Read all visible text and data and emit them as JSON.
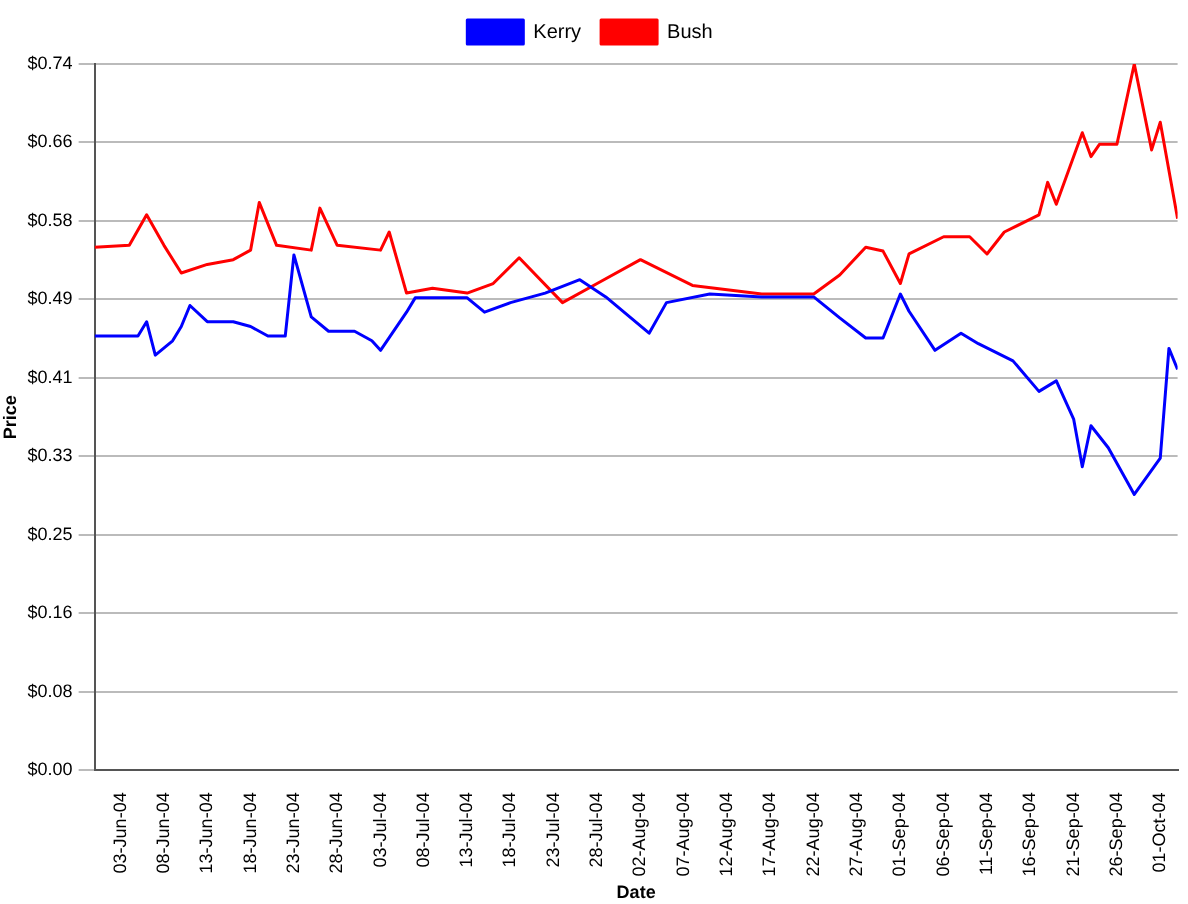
{
  "chart_data": {
    "type": "line",
    "xlabel": "Date",
    "ylabel": "Price",
    "legend": "top",
    "grid": "y",
    "marker": "none",
    "line_style": "solid",
    "xlim": [
      "--05-31",
      "--10-03"
    ],
    "xticks": [
      {
        "value": "--06-03",
        "label": "03-Jun-04"
      },
      {
        "value": "--06-08",
        "label": "08-Jun-04"
      },
      {
        "value": "--06-13",
        "label": "13-Jun-04"
      },
      {
        "value": "--06-18",
        "label": "18-Jun-04"
      },
      {
        "value": "--06-23",
        "label": "23-Jun-04"
      },
      {
        "value": "--06-28",
        "label": "28-Jun-04"
      },
      {
        "value": "--07-03",
        "label": "03-Jul-04"
      },
      {
        "value": "--07-08",
        "label": "08-Jul-04"
      },
      {
        "value": "--07-13",
        "label": "13-Jul-04"
      },
      {
        "value": "--07-18",
        "label": "18-Jul-04"
      },
      {
        "value": "--07-23",
        "label": "23-Jul-04"
      },
      {
        "value": "--07-28",
        "label": "28-Jul-04"
      },
      {
        "value": "--08-02",
        "label": "02-Aug-04"
      },
      {
        "value": "--08-07",
        "label": "07-Aug-04"
      },
      {
        "value": "--08-12",
        "label": "12-Aug-04"
      },
      {
        "value": "--08-17",
        "label": "17-Aug-04"
      },
      {
        "value": "--08-22",
        "label": "22-Aug-04"
      },
      {
        "value": "--08-27",
        "label": "27-Aug-04"
      },
      {
        "value": "--09-01",
        "label": "01-Sep-04"
      },
      {
        "value": "--09-06",
        "label": "06-Sep-04"
      },
      {
        "value": "--09-11",
        "label": "11-Sep-04"
      },
      {
        "value": "--09-16",
        "label": "16-Sep-04"
      },
      {
        "value": "--09-21",
        "label": "21-Sep-04"
      },
      {
        "value": "--09-26",
        "label": "26-Sep-04"
      },
      {
        "value": "--10-01",
        "label": "01-Oct-04"
      }
    ],
    "ylim": [
      0,
      0.74
    ],
    "yticks": [
      {
        "value": 0,
        "label": "$0.00"
      },
      {
        "value": 0.0822,
        "label": "$0.08"
      },
      {
        "value": 0.1644,
        "label": "$0.16"
      },
      {
        "value": 0.2467,
        "label": "$0.25"
      },
      {
        "value": 0.3289,
        "label": "$0.33"
      },
      {
        "value": 0.4111,
        "label": "$0.41"
      },
      {
        "value": 0.4933,
        "label": "$0.49"
      },
      {
        "value": 0.5756,
        "label": "$0.58"
      },
      {
        "value": 0.6578,
        "label": "$0.66"
      },
      {
        "value": 0.74,
        "label": "$0.74"
      }
    ],
    "series": [
      {
        "name": "Kerry",
        "color": "#0000ff",
        "x": [
          "--05-31",
          "--06-05",
          "--06-06",
          "--06-07",
          "--06-09",
          "--06-10",
          "--06-11",
          "--06-13",
          "--06-16",
          "--06-18",
          "--06-20",
          "--06-22",
          "--06-23",
          "--06-25",
          "--06-27",
          "--06-30",
          "--07-02",
          "--07-03",
          "--07-06",
          "--07-07",
          "--07-13",
          "--07-15",
          "--07-18",
          "--07-22",
          "--07-26",
          "--07-29",
          "--08-03",
          "--08-05",
          "--08-10",
          "--08-16",
          "--08-22",
          "--08-25",
          "--08-28",
          "--08-30",
          "--09-01",
          "--09-02",
          "--09-05",
          "--09-08",
          "--09-10",
          "--09-14",
          "--09-17",
          "--09-19",
          "--09-21",
          "--09-22",
          "--09-23",
          "--09-25",
          "--09-28",
          "--10-01",
          "--10-02",
          "--10-03"
        ],
        "values": [
          0.455,
          0.455,
          0.47,
          0.435,
          0.45,
          0.465,
          0.487,
          0.47,
          0.47,
          0.465,
          0.455,
          0.455,
          0.54,
          0.475,
          0.46,
          0.46,
          0.45,
          0.44,
          0.48,
          0.495,
          0.495,
          0.48,
          0.49,
          0.5,
          0.514,
          0.496,
          0.458,
          0.49,
          0.499,
          0.496,
          0.496,
          0.474,
          0.453,
          0.453,
          0.499,
          0.481,
          0.44,
          0.458,
          0.447,
          0.429,
          0.397,
          0.408,
          0.368,
          0.318,
          0.361,
          0.338,
          0.289,
          0.327,
          0.442,
          0.42
        ]
      },
      {
        "name": "Bush",
        "color": "#ff0000",
        "x": [
          "--05-31",
          "--06-04",
          "--06-06",
          "--06-08",
          "--06-10",
          "--06-13",
          "--06-16",
          "--06-18",
          "--06-19",
          "--06-21",
          "--06-25",
          "--06-26",
          "--06-28",
          "--07-03",
          "--07-04",
          "--07-06",
          "--07-09",
          "--07-13",
          "--07-16",
          "--07-19",
          "--07-24",
          "--07-28",
          "--08-02",
          "--08-08",
          "--08-16",
          "--08-22",
          "--08-25",
          "--08-28",
          "--08-30",
          "--09-01",
          "--09-02",
          "--09-06",
          "--09-09",
          "--09-11",
          "--09-13",
          "--09-17",
          "--09-18",
          "--09-19",
          "--09-22",
          "--09-23",
          "--09-24",
          "--09-26",
          "--09-28",
          "--09-30",
          "--10-01",
          "--10-03"
        ],
        "values": [
          0.548,
          0.55,
          0.582,
          0.55,
          0.521,
          0.53,
          0.535,
          0.545,
          0.595,
          0.55,
          0.545,
          0.589,
          0.55,
          0.545,
          0.564,
          0.5,
          0.505,
          0.5,
          0.51,
          0.537,
          0.49,
          0.51,
          0.535,
          0.508,
          0.499,
          0.499,
          0.519,
          0.548,
          0.544,
          0.51,
          0.541,
          0.559,
          0.559,
          0.541,
          0.564,
          0.582,
          0.616,
          0.593,
          0.668,
          0.643,
          0.656,
          0.656,
          0.74,
          0.65,
          0.679,
          0.578
        ]
      }
    ]
  }
}
